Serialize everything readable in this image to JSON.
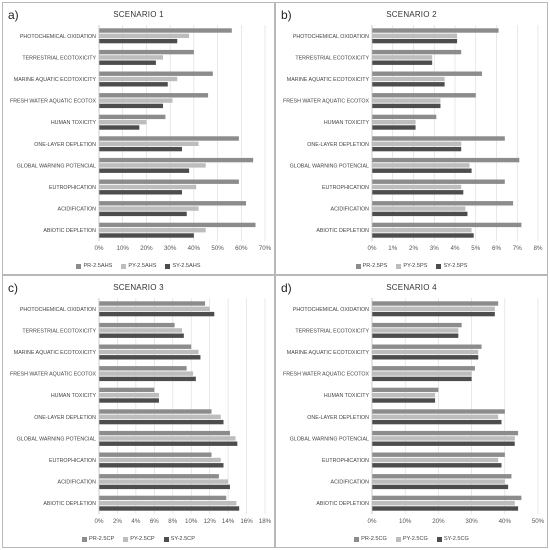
{
  "chart_data": [
    {
      "type": "bar",
      "orientation": "horizontal",
      "panel_label": "a)",
      "title": "SCENARIO 1",
      "categories": [
        "PHOTOCHEMICAL OXIDATION",
        "TERRESTRIAL ECOTOXICITY",
        "MARINE AQUATIC ECOTOXICITY",
        "FRESH WATER AQUATIC ECOTOX",
        "HUMAN TOXICITY",
        "ONE-LAYER DEPLETION",
        "GLOBAL WARNING POTENCIAL",
        "EUTROPHICATION",
        "ACIDIFICATION",
        "ABIOTIC DEPLETION"
      ],
      "series": [
        {
          "name": "PR-2.5AHS",
          "color": "#8c8c8c",
          "values": [
            56,
            40,
            48,
            46,
            28,
            59,
            65,
            59,
            62,
            66
          ]
        },
        {
          "name": "PY-2.5AHS",
          "color": "#bdbdbd",
          "values": [
            38,
            27,
            33,
            31,
            20,
            42,
            45,
            41,
            42,
            45
          ]
        },
        {
          "name": "SY-2.5AHS",
          "color": "#4d4d4d",
          "values": [
            33,
            24,
            29,
            27,
            17,
            35,
            38,
            35,
            37,
            40
          ]
        }
      ],
      "xticks": [
        "0%",
        "10%",
        "20%",
        "30%",
        "40%",
        "50%",
        "60%",
        "70%"
      ],
      "xlim": [
        0,
        70
      ]
    },
    {
      "type": "bar",
      "orientation": "horizontal",
      "panel_label": "b)",
      "title": "SCENARIO 2",
      "categories": [
        "PHOTOCHEMICAL OXIDATION",
        "TERRESTRIAL ECOTOXICITY",
        "MARINE AQUATIC ECOTOXICITY",
        "FRESH WATER AQUATIC ECOTOX",
        "HUMAN TOXICITY",
        "ONE-LAYER DEPLETION",
        "GLOBAL WARNING POTENCIAL",
        "EUTROPHICATION",
        "ACIDIFICATION",
        "ABIOTIC DEPLETION"
      ],
      "series": [
        {
          "name": "PR-2.5PS",
          "color": "#8c8c8c",
          "values": [
            6.1,
            4.3,
            5.3,
            5.0,
            3.1,
            6.4,
            7.1,
            6.4,
            6.8,
            7.2
          ]
        },
        {
          "name": "PY-2.5PS",
          "color": "#bdbdbd",
          "values": [
            4.1,
            2.9,
            3.5,
            3.3,
            2.1,
            4.3,
            4.7,
            4.3,
            4.5,
            4.8
          ]
        },
        {
          "name": "SY-2.5PS",
          "color": "#4d4d4d",
          "values": [
            4.1,
            2.9,
            3.5,
            3.3,
            2.1,
            4.3,
            4.8,
            4.4,
            4.6,
            4.9
          ]
        }
      ],
      "xticks": [
        "0%",
        "1%",
        "2%",
        "3%",
        "4%",
        "5%",
        "6%",
        "7%",
        "8%"
      ],
      "xlim": [
        0,
        8
      ]
    },
    {
      "type": "bar",
      "orientation": "horizontal",
      "panel_label": "c)",
      "title": "SCENARIO 3",
      "categories": [
        "PHOTOCHEMICAL OXIDATION",
        "TERRESTRIAL ECOTOXICITY",
        "MARINE AQUATIC ECOTOXICITY",
        "FRESH WATER AQUATIC ECOTOX",
        "HUMAN TOXICITY",
        "ONE-LAYER DEPLETION",
        "GLOBAL WARNING POTENCIAL",
        "EUTROPHICATION",
        "ACIDIFICATION",
        "ABIOTIC DEPLETION"
      ],
      "series": [
        {
          "name": "PR-2.5CP",
          "color": "#8c8c8c",
          "values": [
            11.5,
            8.2,
            10.0,
            9.5,
            6.0,
            12.2,
            14.2,
            12.2,
            13.0,
            13.8
          ]
        },
        {
          "name": "PY-2.5CP",
          "color": "#bdbdbd",
          "values": [
            12.0,
            9.0,
            10.8,
            10.2,
            6.5,
            13.2,
            14.8,
            13.2,
            14.0,
            14.9
          ]
        },
        {
          "name": "SY-2.5CP",
          "color": "#4d4d4d",
          "values": [
            12.5,
            9.2,
            11.0,
            10.5,
            6.5,
            13.5,
            15.0,
            13.5,
            14.2,
            15.2
          ]
        }
      ],
      "xticks": [
        "0%",
        "2%",
        "4%",
        "6%",
        "8%",
        "10%",
        "12%",
        "14%",
        "16%",
        "18%"
      ],
      "xlim": [
        0,
        18
      ]
    },
    {
      "type": "bar",
      "orientation": "horizontal",
      "panel_label": "d)",
      "title": "SCENARIO 4",
      "categories": [
        "PHOTOCHEMICAL OXIDATION",
        "TERRESTRIAL ECOTOXICITY",
        "MARINE AQUATIC ECOTOXICITY",
        "FRESH WATER AQUATIC ECOTOX",
        "HUMAN TOXICITY",
        "ONE-LAYER DEPLETION",
        "GLOBAL WARNING POTENCIAL",
        "EUTROPHICATION",
        "ACIDIFICATION",
        "ABIOTIC DEPLETION"
      ],
      "series": [
        {
          "name": "PR-2.5CG",
          "color": "#8c8c8c",
          "values": [
            38,
            27,
            33,
            31,
            20,
            40,
            44,
            40,
            42,
            45
          ]
        },
        {
          "name": "PY-2.5CG",
          "color": "#bdbdbd",
          "values": [
            37,
            26,
            32,
            30,
            19,
            38,
            43,
            38,
            40,
            43
          ]
        },
        {
          "name": "SY-2.5CG",
          "color": "#4d4d4d",
          "values": [
            37,
            26,
            32,
            30,
            19,
            39,
            43,
            39,
            41,
            44
          ]
        }
      ],
      "xticks": [
        "0%",
        "10%",
        "20%",
        "30%",
        "40%",
        "50%"
      ],
      "xlim": [
        0,
        50
      ]
    }
  ]
}
